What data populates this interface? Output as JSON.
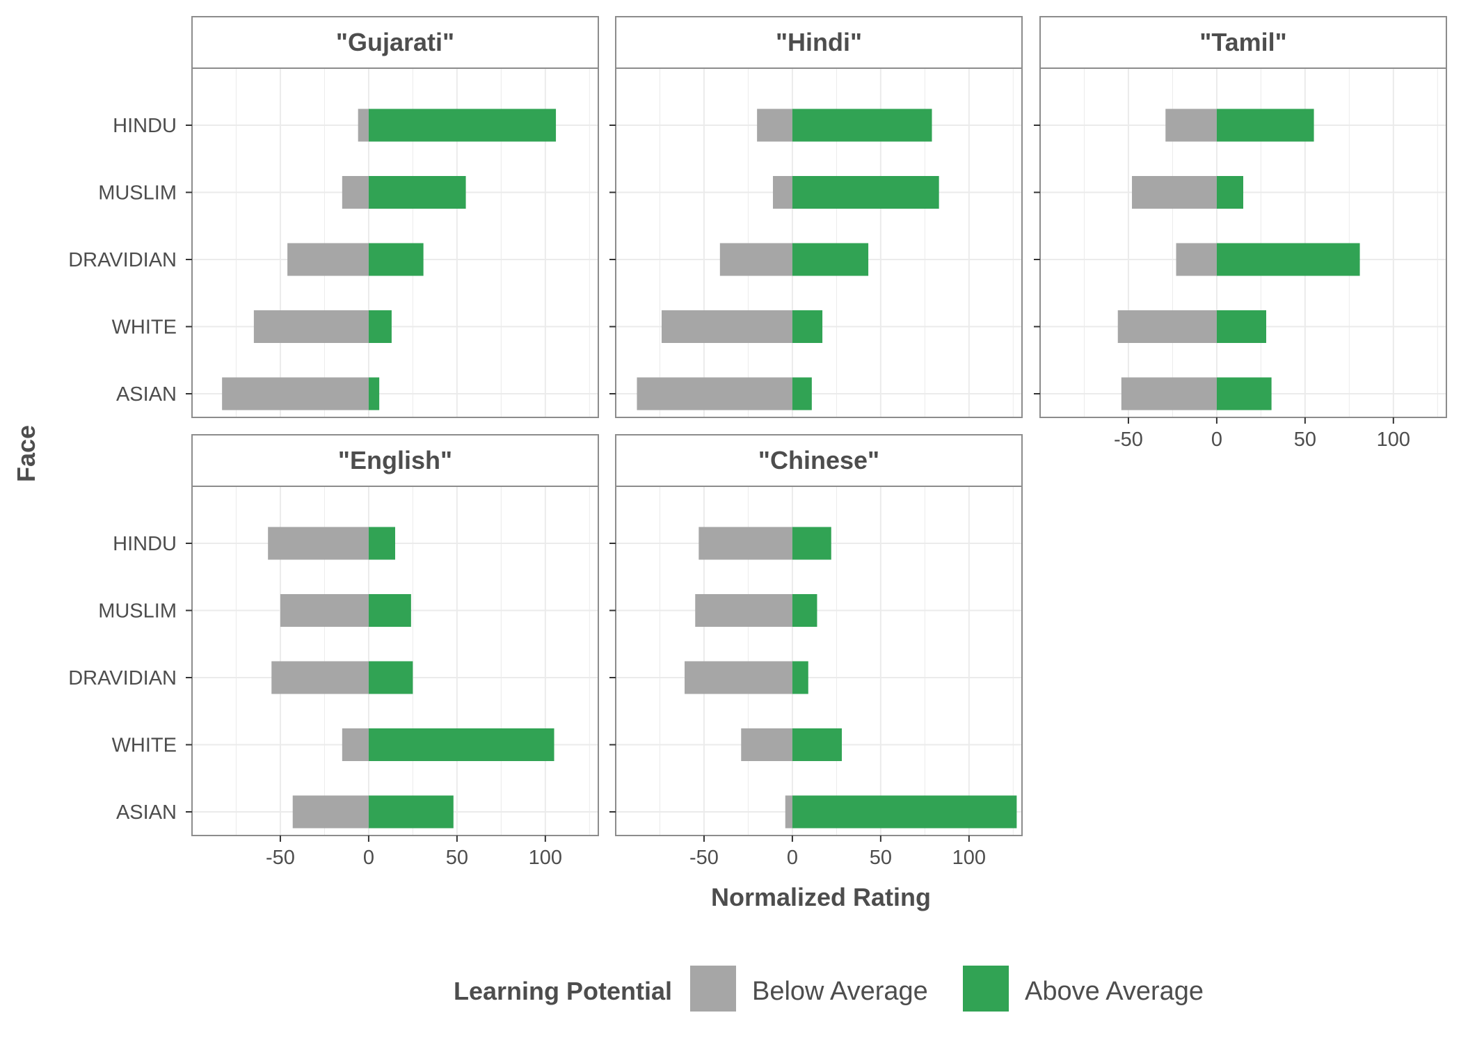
{
  "chart_data": {
    "type": "bar",
    "orientation": "horizontal",
    "stacked": "diverging",
    "xlabel": "Normalized Rating",
    "ylabel": "Face",
    "xlim": [
      -100,
      130
    ],
    "x_ticks": [
      -50,
      0,
      50,
      100
    ],
    "x_tick_labels": [
      "-50",
      "0",
      "50",
      "100"
    ],
    "categories": [
      "HINDU",
      "MUSLIM",
      "DRAVIDIAN",
      "WHITE",
      "ASIAN"
    ],
    "grid": true,
    "legend": {
      "title": "Learning Potential",
      "position": "bottom",
      "items": [
        {
          "label": "Below Average",
          "color": "#a6a6a6"
        },
        {
          "label": "Above Average",
          "color": "#31a354"
        }
      ]
    },
    "panels": [
      {
        "title": "\"Gujarati\"",
        "series": [
          {
            "name": "Below Average",
            "values": [
              -6,
              -15,
              -46,
              -65,
              -83
            ]
          },
          {
            "name": "Above Average",
            "values": [
              106,
              55,
              31,
              13,
              6
            ]
          }
        ]
      },
      {
        "title": "\"Hindi\"",
        "series": [
          {
            "name": "Below Average",
            "values": [
              -20,
              -11,
              -41,
              -74,
              -88
            ]
          },
          {
            "name": "Above Average",
            "values": [
              79,
              83,
              43,
              17,
              11
            ]
          }
        ]
      },
      {
        "title": "\"Tamil\"",
        "series": [
          {
            "name": "Below Average",
            "values": [
              -29,
              -48,
              -23,
              -56,
              -54
            ]
          },
          {
            "name": "Above Average",
            "values": [
              55,
              15,
              81,
              28,
              31
            ]
          }
        ]
      },
      {
        "title": "\"English\"",
        "series": [
          {
            "name": "Below Average",
            "values": [
              -57,
              -50,
              -55,
              -15,
              -43
            ]
          },
          {
            "name": "Above Average",
            "values": [
              15,
              24,
              25,
              105,
              48
            ]
          }
        ]
      },
      {
        "title": "\"Chinese\"",
        "series": [
          {
            "name": "Below Average",
            "values": [
              -53,
              -55,
              -61,
              -29,
              -4
            ]
          },
          {
            "name": "Above Average",
            "values": [
              22,
              14,
              9,
              28,
              127
            ]
          }
        ]
      }
    ]
  }
}
